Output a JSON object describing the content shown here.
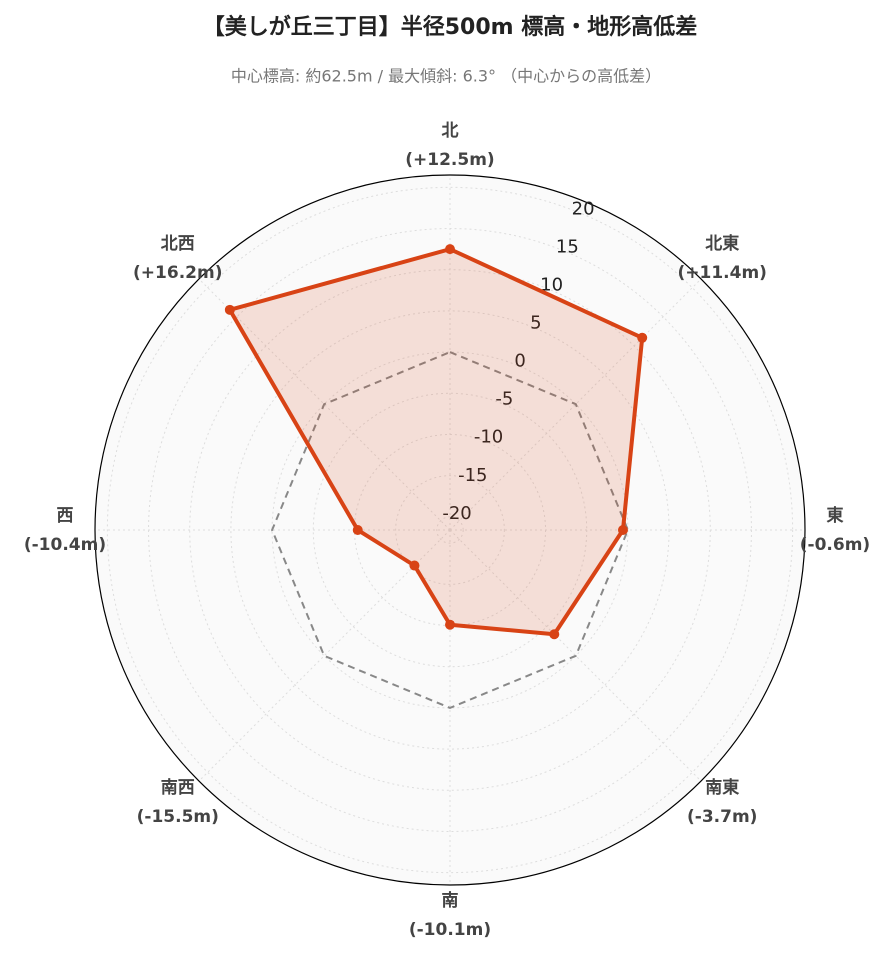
{
  "chart_data": {
    "type": "radar",
    "title": "【美しが丘三丁目】半径500m 標高・地形高低差",
    "subtitle": "中心標高: 約62.5m / 最大傾斜: 6.3° （中心からの高低差）",
    "categories": [
      "北",
      "北東",
      "東",
      "南東",
      "南",
      "南西",
      "西",
      "北西"
    ],
    "series": [
      {
        "color": "#d84315",
        "values": [
          12.5,
          11.4,
          -0.6,
          -3.7,
          -10.1,
          -15.5,
          -10.4,
          16.2
        ],
        "value_labels": [
          "(+12.5m)",
          "(+11.4m)",
          "(-0.6m)",
          "(-3.7m)",
          "(-10.1m)",
          "(-15.5m)",
          "(-10.4m)",
          "(+16.2m)"
        ]
      }
    ],
    "ylim": [
      -21.6,
      21.5
    ],
    "yticks": [
      -20,
      -15,
      -10,
      -5,
      0,
      5,
      10,
      15,
      20
    ],
    "baseline": 0,
    "grid": true
  }
}
